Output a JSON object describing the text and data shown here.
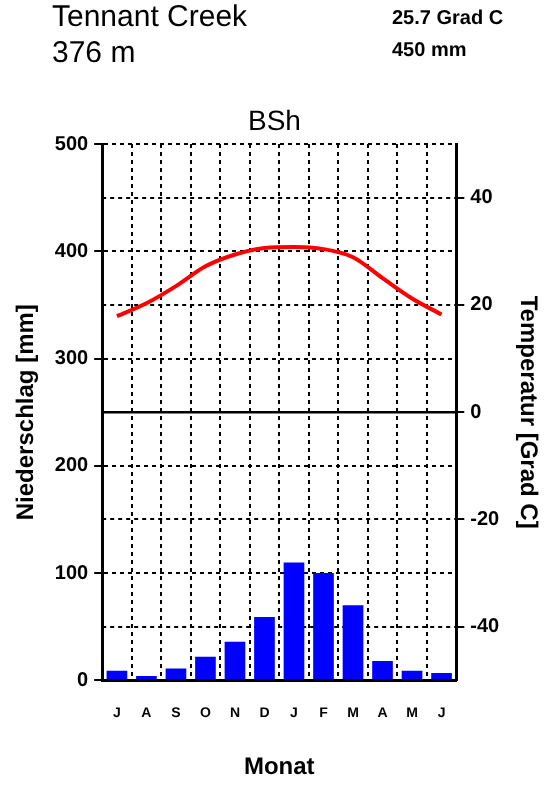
{
  "chart_data": {
    "type": "bar",
    "title": "Tennant Creek",
    "subtitle": "376 m",
    "annotations": [
      "25.7 Grad C",
      "450 mm",
      "BSh"
    ],
    "xlabel": "Monat",
    "ylabel": "Niederschlag [mm]",
    "y2label": "Temperatur [Grad C]",
    "categories": [
      "J",
      "A",
      "S",
      "O",
      "N",
      "D",
      "J",
      "F",
      "M",
      "A",
      "M",
      "J"
    ],
    "series": [
      {
        "color": "#0000ff",
        "values": [
          9,
          4,
          11,
          22,
          36,
          59,
          110,
          100,
          70,
          18,
          9,
          7
        ]
      },
      {
        "type": "line",
        "axis": "y2",
        "color": "#ff0000",
        "values": [
          17.9,
          20.3,
          23.5,
          27.2,
          29.4,
          30.6,
          30.8,
          30.4,
          28.9,
          25.0,
          21.2,
          18.2
        ]
      }
    ],
    "ylim": [
      0,
      500
    ],
    "yticks": [
      0,
      100,
      200,
      300,
      400,
      500
    ],
    "y2lim": [
      -50,
      50
    ],
    "y2ticks": [
      -40,
      -20,
      0,
      20,
      40
    ],
    "ref_lines": [
      {
        "axis": "y2",
        "value": 0,
        "color": "#000000",
        "line_style": "solid"
      }
    ],
    "grid": true,
    "legend": false,
    "marker": "none"
  }
}
